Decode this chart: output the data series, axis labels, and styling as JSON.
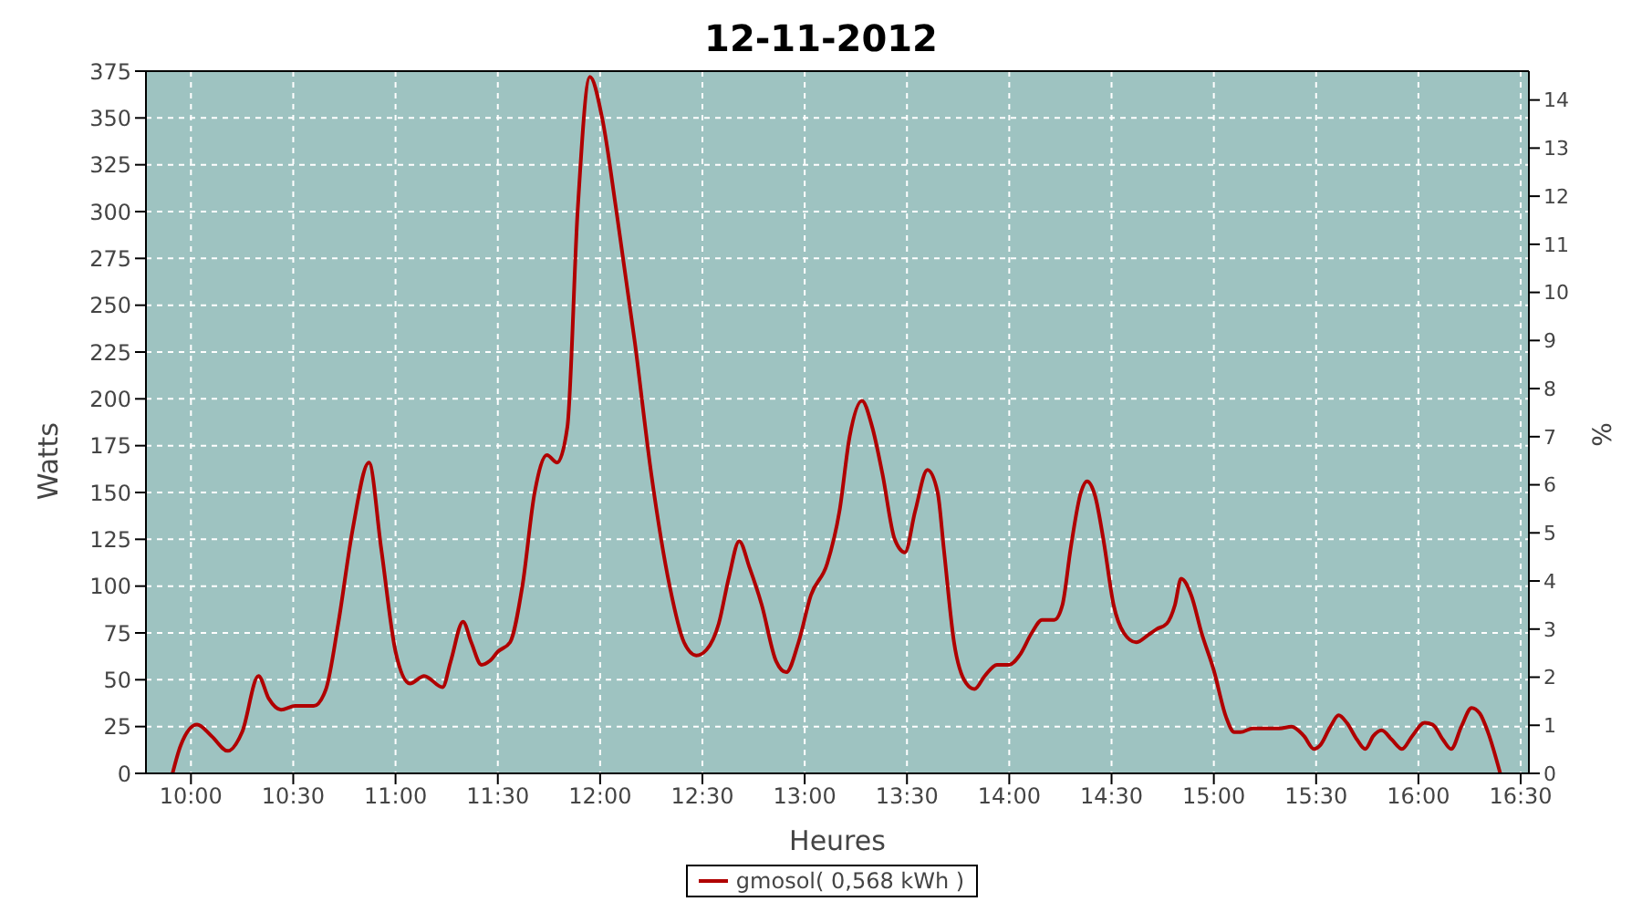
{
  "chart_data": {
    "type": "line",
    "title": "12-11-2012",
    "xlabel": "Heures",
    "ylabel": "Watts",
    "y2label": "%",
    "x": [
      9.91,
      9.95,
      10.03,
      10.1,
      10.18,
      10.25,
      10.33,
      10.38,
      10.44,
      10.51,
      10.6,
      10.66,
      10.72,
      10.79,
      10.87,
      10.93,
      11.0,
      11.07,
      11.14,
      11.23,
      11.27,
      11.33,
      11.37,
      11.42,
      11.46,
      11.5,
      11.56,
      11.62,
      11.68,
      11.74,
      11.79,
      11.84,
      11.89,
      11.95,
      12.01,
      12.08,
      12.17,
      12.25,
      12.34,
      12.41,
      12.47,
      12.52,
      12.58,
      12.63,
      12.68,
      12.73,
      12.79,
      12.86,
      12.91,
      12.97,
      13.03,
      13.11,
      13.17,
      13.22,
      13.28,
      13.33,
      13.38,
      13.44,
      13.49,
      13.54,
      13.6,
      13.65,
      13.68,
      13.73,
      13.79,
      13.83,
      13.88,
      13.94,
      14.0,
      14.05,
      14.11,
      14.16,
      14.22,
      14.26,
      14.3,
      14.35,
      14.38,
      14.42,
      14.46,
      14.51,
      14.56,
      14.62,
      14.68,
      14.72,
      14.77,
      14.81,
      14.84,
      14.89,
      14.94,
      15.0,
      15.06,
      15.1,
      15.13,
      15.19,
      15.26,
      15.32,
      15.38,
      15.44,
      15.49,
      15.52,
      15.57,
      15.61,
      15.65,
      15.7,
      15.74,
      15.78,
      15.82,
      15.87,
      15.92,
      15.97,
      16.03,
      16.07,
      16.12,
      16.16,
      16.21,
      16.26,
      16.3,
      16.34,
      16.4
    ],
    "series": [
      {
        "name": "gmosol( 0,568 kWh )",
        "color": "#b00000",
        "values": [
          0,
          15,
          26,
          20,
          12,
          22,
          52,
          40,
          34,
          36,
          36,
          45,
          80,
          130,
          166,
          120,
          65,
          48,
          52,
          46,
          60,
          81,
          70,
          58,
          60,
          65,
          70,
          100,
          150,
          170,
          166,
          185,
          300,
          372,
          350,
          300,
          230,
          160,
          100,
          70,
          63,
          66,
          80,
          105,
          124,
          110,
          90,
          60,
          54,
          70,
          95,
          112,
          140,
          180,
          199,
          185,
          160,
          125,
          118,
          140,
          162,
          150,
          120,
          70,
          48,
          45,
          52,
          58,
          58,
          63,
          75,
          82,
          82,
          90,
          120,
          150,
          156,
          148,
          125,
          90,
          75,
          70,
          74,
          77,
          80,
          90,
          104,
          95,
          75,
          55,
          30,
          22,
          22,
          24,
          24,
          24,
          25,
          20,
          13,
          15,
          25,
          31,
          27,
          18,
          13,
          20,
          23,
          18,
          13,
          20,
          27,
          26,
          18,
          13,
          25,
          35,
          32,
          22,
          0
        ]
      }
    ],
    "xlim": [
      9.78,
      16.54
    ],
    "xticks": [
      {
        "value": 10,
        "label": "10:00"
      },
      {
        "value": 10.5,
        "label": "10:30"
      },
      {
        "value": 11,
        "label": "11:00"
      },
      {
        "value": 11.5,
        "label": "11:30"
      },
      {
        "value": 12,
        "label": "12:00"
      },
      {
        "value": 12.5,
        "label": "12:30"
      },
      {
        "value": 13,
        "label": "13:00"
      },
      {
        "value": 13.5,
        "label": "13:30"
      },
      {
        "value": 14,
        "label": "14:00"
      },
      {
        "value": 14.5,
        "label": "14:30"
      },
      {
        "value": 15,
        "label": "15:00"
      },
      {
        "value": 15.5,
        "label": "15:30"
      },
      {
        "value": 16,
        "label": "16:00"
      },
      {
        "value": 16.5,
        "label": "16:30"
      }
    ],
    "ylim": [
      0,
      375
    ],
    "yticks": [
      0,
      25,
      50,
      75,
      100,
      125,
      150,
      175,
      200,
      225,
      250,
      275,
      300,
      325,
      350,
      375
    ],
    "y2lim": [
      0,
      14.6
    ],
    "y2ticks": [
      0,
      1,
      2,
      3,
      4,
      5,
      6,
      7,
      8,
      9,
      10,
      11,
      12,
      13,
      14
    ],
    "grid": true,
    "legend": "bottom",
    "marker": "none",
    "line_style": "solid"
  }
}
